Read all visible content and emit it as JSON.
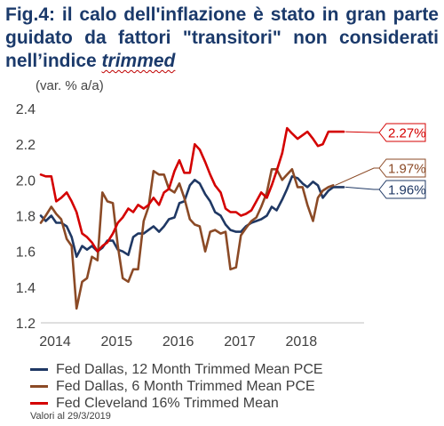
{
  "title_prefix": "Fig.4: il calo dell'inflazione è stato in gran parte guidato da fattori \"transitori\" non considerati nell’indice ",
  "title_italic": "trimmed",
  "unit_label": "(var. % a/a)",
  "source_note": "Valori al 29/3/2019",
  "colors": {
    "dallas12": "#1f3864",
    "dallas6": "#8b4a26",
    "cleveland": "#d40000"
  },
  "chart_data": {
    "type": "line",
    "title": "Fig.4: il calo dell'inflazione è stato in gran parte guidato da fattori \"transitori\" non considerati nell’indice trimmed",
    "ylabel": "(var. % a/a)",
    "xlabel": "",
    "ylim": [
      1.2,
      2.4
    ],
    "y_ticks": [
      "1.2",
      "1.4",
      "1.6",
      "1.8",
      "2.0",
      "2.2",
      "2.4"
    ],
    "x_ticks": [
      "2014",
      "2015",
      "2016",
      "2017",
      "2018"
    ],
    "xlim": [
      2014.0,
      2019.25
    ],
    "grid": false,
    "legend_position": "bottom",
    "end_labels": [
      {
        "text": "2.27%",
        "value": 2.27,
        "series": "cleveland"
      },
      {
        "text": "1.97%",
        "value": 1.97,
        "series": "dallas6"
      },
      {
        "text": "1.96%",
        "value": 1.96,
        "series": "dallas12"
      }
    ],
    "series": [
      {
        "key": "dallas12",
        "name": "Fed Dallas, 12 Month Trimmed Mean PCE",
        "color": "#1f3864",
        "x": [
          2014.0,
          2014.08,
          2014.17,
          2014.25,
          2014.33,
          2014.42,
          2014.5,
          2014.58,
          2014.67,
          2014.75,
          2014.83,
          2014.92,
          2015.0,
          2015.08,
          2015.17,
          2015.25,
          2015.33,
          2015.42,
          2015.5,
          2015.58,
          2015.67,
          2015.75,
          2015.83,
          2015.92,
          2016.0,
          2016.08,
          2016.17,
          2016.25,
          2016.33,
          2016.42,
          2016.5,
          2016.58,
          2016.67,
          2016.75,
          2016.83,
          2016.92,
          2017.0,
          2017.08,
          2017.17,
          2017.25,
          2017.33,
          2017.42,
          2017.5,
          2017.58,
          2017.67,
          2017.75,
          2017.83,
          2017.92,
          2018.0,
          2018.08,
          2018.17,
          2018.25,
          2018.33,
          2018.42,
          2018.5,
          2018.58,
          2018.67,
          2018.75,
          2018.83,
          2018.92
        ],
        "values": [
          1.8,
          1.77,
          1.8,
          1.76,
          1.76,
          1.74,
          1.68,
          1.57,
          1.63,
          1.61,
          1.63,
          1.6,
          1.62,
          1.66,
          1.66,
          1.61,
          1.6,
          1.58,
          1.68,
          1.7,
          1.7,
          1.72,
          1.74,
          1.71,
          1.74,
          1.78,
          1.79,
          1.87,
          1.88,
          1.97,
          2.0,
          1.98,
          1.92,
          1.88,
          1.82,
          1.8,
          1.75,
          1.72,
          1.71,
          1.71,
          1.74,
          1.76,
          1.77,
          1.78,
          1.8,
          1.85,
          1.83,
          1.89,
          1.95,
          2.02,
          2.01,
          1.98,
          1.96,
          1.99,
          1.97,
          1.9,
          1.94,
          1.96,
          1.96,
          1.96
        ]
      },
      {
        "key": "dallas6",
        "name": "Fed Dallas, 6 Month Trimmed Mean PCE",
        "color": "#8b4a26",
        "x": [
          2014.0,
          2014.08,
          2014.17,
          2014.25,
          2014.33,
          2014.42,
          2014.5,
          2014.58,
          2014.67,
          2014.75,
          2014.83,
          2014.92,
          2015.0,
          2015.08,
          2015.17,
          2015.25,
          2015.33,
          2015.42,
          2015.5,
          2015.58,
          2015.67,
          2015.75,
          2015.83,
          2015.92,
          2016.0,
          2016.08,
          2016.17,
          2016.25,
          2016.33,
          2016.42,
          2016.5,
          2016.58,
          2016.67,
          2016.75,
          2016.83,
          2016.92,
          2017.0,
          2017.08,
          2017.17,
          2017.25,
          2017.33,
          2017.42,
          2017.5,
          2017.58,
          2017.67,
          2017.75,
          2017.83,
          2017.92,
          2018.0,
          2018.08,
          2018.17,
          2018.25,
          2018.33,
          2018.42,
          2018.5,
          2018.58,
          2018.67,
          2018.75
        ],
        "values": [
          1.76,
          1.8,
          1.85,
          1.81,
          1.78,
          1.67,
          1.63,
          1.28,
          1.43,
          1.45,
          1.57,
          1.55,
          1.93,
          1.88,
          1.87,
          1.63,
          1.45,
          1.43,
          1.5,
          1.5,
          1.77,
          1.85,
          2.05,
          2.03,
          2.03,
          1.95,
          1.93,
          1.98,
          1.9,
          1.78,
          1.75,
          1.74,
          1.6,
          1.71,
          1.72,
          1.7,
          1.71,
          1.5,
          1.51,
          1.69,
          1.73,
          1.77,
          1.79,
          1.85,
          1.93,
          2.06,
          2.06,
          2.0,
          2.03,
          2.06,
          1.96,
          1.96,
          1.86,
          1.77,
          1.9,
          1.94,
          1.96,
          1.97
        ]
      },
      {
        "key": "cleveland",
        "name": "Fed Cleveland 16% Trimmed Mean",
        "color": "#d40000",
        "x": [
          2014.0,
          2014.08,
          2014.17,
          2014.25,
          2014.33,
          2014.42,
          2014.5,
          2014.58,
          2014.67,
          2014.75,
          2014.83,
          2014.92,
          2015.0,
          2015.08,
          2015.17,
          2015.25,
          2015.33,
          2015.42,
          2015.5,
          2015.58,
          2015.67,
          2015.75,
          2015.83,
          2015.92,
          2016.0,
          2016.08,
          2016.17,
          2016.25,
          2016.33,
          2016.42,
          2016.5,
          2016.58,
          2016.67,
          2016.75,
          2016.83,
          2016.92,
          2017.0,
          2017.08,
          2017.17,
          2017.25,
          2017.33,
          2017.42,
          2017.5,
          2017.58,
          2017.67,
          2017.75,
          2017.83,
          2017.92,
          2018.0,
          2018.08,
          2018.17,
          2018.25,
          2018.33,
          2018.42,
          2018.5,
          2018.58,
          2018.67,
          2018.75,
          2018.83,
          2018.92
        ],
        "values": [
          2.03,
          2.02,
          2.02,
          1.88,
          1.9,
          1.93,
          1.88,
          1.82,
          1.7,
          1.68,
          1.65,
          1.6,
          1.63,
          1.65,
          1.7,
          1.76,
          1.79,
          1.84,
          1.82,
          1.86,
          1.84,
          1.86,
          1.9,
          1.86,
          1.93,
          1.95,
          2.05,
          2.11,
          2.04,
          2.04,
          2.2,
          2.17,
          2.1,
          2.03,
          1.97,
          1.93,
          1.84,
          1.82,
          1.82,
          1.8,
          1.81,
          1.83,
          1.88,
          1.93,
          1.9,
          1.97,
          2.05,
          2.15,
          2.29,
          2.26,
          2.23,
          2.25,
          2.27,
          2.23,
          2.19,
          2.2,
          2.27,
          2.27,
          2.27,
          2.27
        ]
      }
    ]
  }
}
